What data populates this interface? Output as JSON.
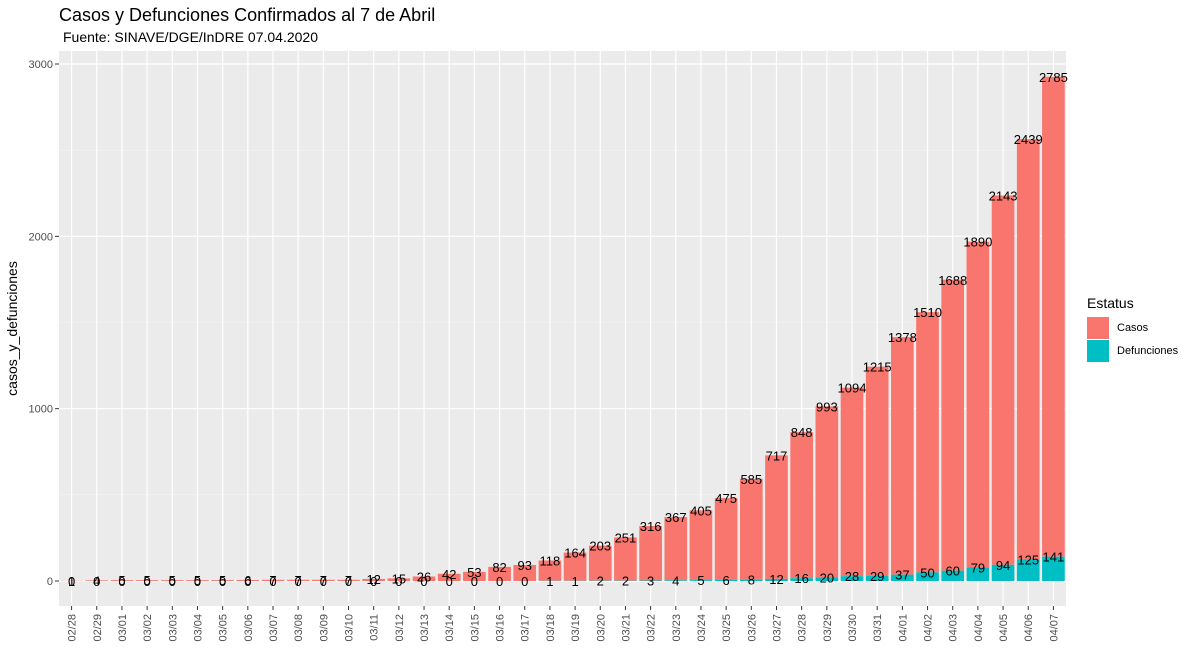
{
  "chart_data": {
    "type": "bar",
    "title": "Casos y Defunciones Confirmados al 7 de Abril",
    "subtitle": "Fuente:  SINAVE/DGE/InDRE 07.04.2020",
    "xlabel": "",
    "ylabel": "casos_y_defunciones",
    "ylim": [
      0,
      3000
    ],
    "yticks": [
      0,
      1000,
      2000,
      3000
    ],
    "grid": true,
    "stacked": true,
    "legend_title": "Estatus",
    "legend_position": "right",
    "categories": [
      "02/28",
      "02/29",
      "03/01",
      "03/02",
      "03/03",
      "03/04",
      "03/05",
      "03/06",
      "03/07",
      "03/08",
      "03/09",
      "03/10",
      "03/11",
      "03/12",
      "03/13",
      "03/14",
      "03/15",
      "03/16",
      "03/17",
      "03/18",
      "03/19",
      "03/20",
      "03/21",
      "03/22",
      "03/23",
      "03/24",
      "03/25",
      "03/26",
      "03/27",
      "03/28",
      "03/29",
      "03/30",
      "03/31",
      "04/01",
      "04/02",
      "04/03",
      "04/04",
      "04/05",
      "04/06",
      "04/07"
    ],
    "series": [
      {
        "name": "Casos",
        "color": "#F8766D",
        "values": [
          1,
          4,
          5,
          5,
          5,
          5,
          5,
          6,
          7,
          7,
          7,
          7,
          12,
          15,
          26,
          42,
          53,
          82,
          93,
          118,
          164,
          203,
          251,
          316,
          367,
          405,
          475,
          585,
          717,
          848,
          993,
          1094,
          1215,
          1378,
          1510,
          1688,
          1890,
          2143,
          2439,
          2785
        ]
      },
      {
        "name": "Defunciones",
        "color": "#00BFC4",
        "values": [
          0,
          0,
          0,
          0,
          0,
          0,
          0,
          0,
          0,
          0,
          0,
          0,
          0,
          0,
          0,
          0,
          0,
          0,
          0,
          1,
          1,
          2,
          2,
          3,
          4,
          5,
          6,
          8,
          12,
          16,
          20,
          28,
          29,
          37,
          50,
          60,
          79,
          94,
          125,
          141
        ]
      }
    ]
  }
}
